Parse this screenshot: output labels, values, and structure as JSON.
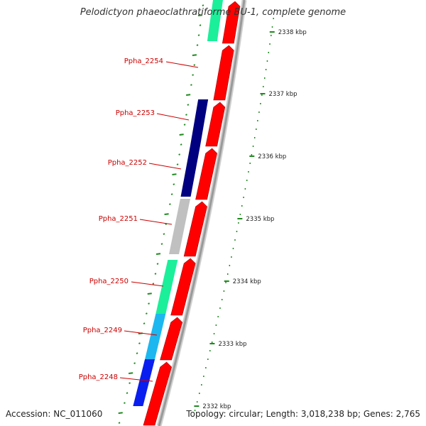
{
  "title": "Pelodictyon phaeoclathratiforme BU-1, complete genome",
  "accession": "Accession: NC_011060",
  "summary": "Topology: circular; Length: 3,018,238 bp; Genes: 2,765",
  "colors": {
    "forward_cds": "#ff0000",
    "backbone": "#9a9a9a",
    "gene_label": "#cc0000",
    "gc_tick": "#1e8a1e",
    "scale_tick": "#1e8a1e"
  },
  "gene_labels": [
    "Ppha_2254",
    "Ppha_2253",
    "Ppha_2252",
    "Ppha_2251",
    "Ppha_2250",
    "Ppha_2249",
    "Ppha_2248"
  ],
  "scale_labels": [
    "2338 kbp",
    "2337 kbp",
    "2336 kbp",
    "2335 kbp",
    "2334 kbp",
    "2333 kbp",
    "2332 kbp"
  ],
  "feature_colors": [
    "#1bef9a",
    "#000080",
    "#000080",
    "#c0c0c0",
    "#1bef9a",
    "#1cb7f0",
    "#0a1ef0"
  ]
}
